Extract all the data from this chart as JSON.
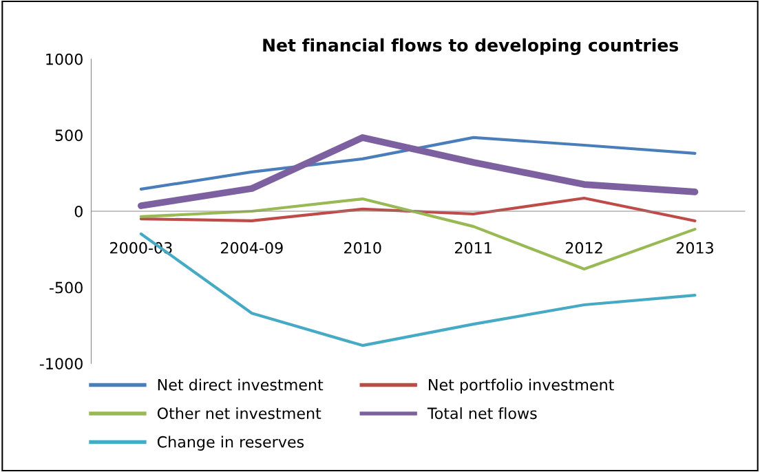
{
  "chart_data": {
    "type": "line",
    "title": "Net financial flows to developing countries",
    "categories": [
      "2000-03",
      "2004-09",
      "2010",
      "2011",
      "2012",
      "2013"
    ],
    "series": [
      {
        "name": "Net direct investment",
        "color": "#4a7ebb",
        "values": [
          145,
          258,
          344,
          484,
          434,
          380
        ]
      },
      {
        "name": "Net portfolio investment",
        "color": "#be4b48",
        "values": [
          -50,
          -63,
          14,
          -18,
          86,
          -63
        ]
      },
      {
        "name": "Other net investment",
        "color": "#98b954",
        "values": [
          -36,
          0,
          81,
          -100,
          -380,
          -118
        ]
      },
      {
        "name": "Total net flows",
        "color": "#7d60a0",
        "values": [
          36,
          149,
          484,
          321,
          176,
          127
        ]
      },
      {
        "name": "Change in reserves",
        "color": "#46aac5",
        "values": [
          -149,
          -670,
          -882,
          -742,
          -615,
          -552
        ]
      }
    ],
    "ylim": [
      -1000,
      1000
    ],
    "yticks": [
      -1000,
      -500,
      0,
      500,
      1000
    ],
    "grid": false,
    "legend": "bottom",
    "marker": "none",
    "line_style": "solid"
  }
}
